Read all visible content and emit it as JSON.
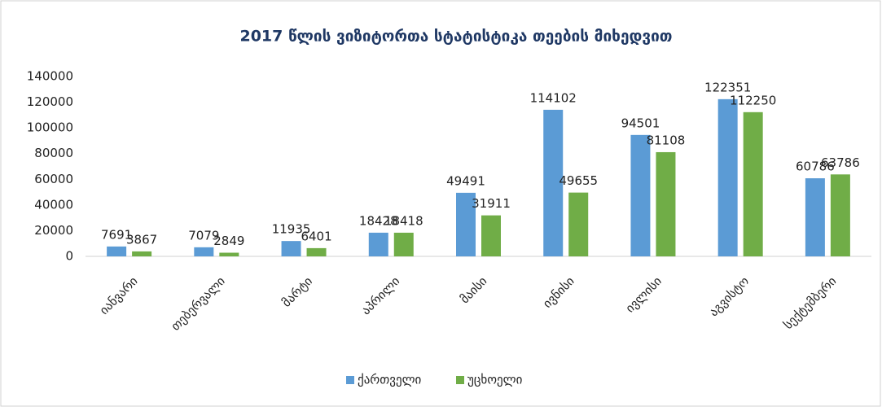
{
  "chart_data": {
    "type": "bar",
    "title": "2017 წლის ვიზიტორთა სტატისტიკა თეების მიხედვით",
    "categories": [
      "იანვარი",
      "თებერვალი",
      "მარტი",
      "აპრილი",
      "მაისი",
      "ივნისი",
      "ივლისი",
      "აგვისტო",
      "სექტემბერი"
    ],
    "series": [
      {
        "name": "ქართველი",
        "color": "#5b9bd5",
        "values": [
          7691,
          7079,
          11935,
          18428,
          49491,
          114102,
          94501,
          122351,
          60786
        ]
      },
      {
        "name": "უცხოელი",
        "color": "#70ad47",
        "values": [
          3867,
          2849,
          6401,
          18418,
          31911,
          49655,
          81108,
          112250,
          63786
        ]
      }
    ],
    "ylim": [
      0,
      140000
    ],
    "yticks": [
      0,
      20000,
      40000,
      60000,
      80000,
      100000,
      120000,
      140000
    ],
    "grid": false,
    "legend": "bottom"
  }
}
